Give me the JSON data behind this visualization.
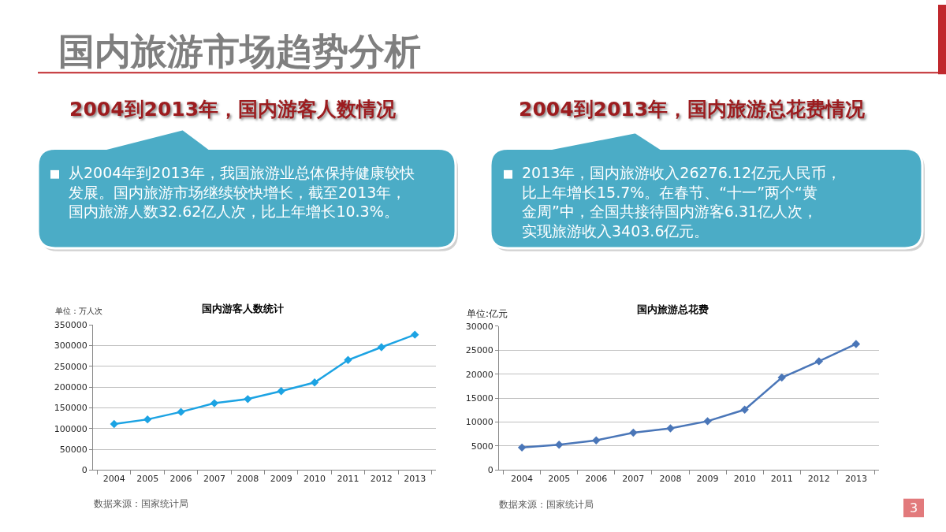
{
  "chart_data": [
    {
      "type": "other",
      "title": "国内旅游市场趋势分析",
      "annotations": [
        "2004到2013年，国内游客人数情况",
        "从2004年到2013年，我国旅游业总体保持健康较快发展。国内旅游市场继续较快增长，截至2013年，国内旅游人数32.62亿人次，比上年增长10.3%。",
        "2004到2013年，国内旅游总花费情况",
        "2013年，国内旅游收入26276.12亿元人民币，比上年增长15.7%。在春节、“十一”两个“黄金周”中，全国共接待国内游客6.31亿人次，实现旅游收入3403.6亿元。",
        "3"
      ]
    },
    {
      "type": "line",
      "title": "国内游客人数统计",
      "ylabel": "单位：万人次",
      "categories": [
        "2004",
        "2005",
        "2006",
        "2007",
        "2008",
        "2009",
        "2010",
        "2011",
        "2012",
        "2013"
      ],
      "series": [
        {
          "color": "#1ca3e3",
          "values": [
            111000,
            122000,
            140000,
            161000,
            171000,
            190000,
            211000,
            265000,
            296000,
            326000
          ]
        }
      ],
      "ylim": [
        0,
        350000
      ],
      "yticks": [
        0,
        50000,
        100000,
        150000,
        200000,
        250000,
        300000,
        350000
      ],
      "grid": "y",
      "marker": "diamond",
      "annotations": [
        "数据来源：国家统计局"
      ]
    },
    {
      "type": "line",
      "title": "国内旅游总花费",
      "ylabel": "单位:亿元",
      "categories": [
        "2004",
        "2005",
        "2006",
        "2007",
        "2008",
        "2009",
        "2010",
        "2011",
        "2012",
        "2013"
      ],
      "series": [
        {
          "color": "#4a76b8",
          "values": [
            4700,
            5300,
            6200,
            7800,
            8700,
            10200,
            12600,
            19300,
            22700,
            26300
          ]
        }
      ],
      "ylim": [
        0,
        30000
      ],
      "yticks": [
        0,
        5000,
        10000,
        15000,
        20000,
        25000,
        30000
      ],
      "grid": "y",
      "marker": "diamond",
      "annotations": [
        "数据来源：国家统计局"
      ]
    }
  ]
}
